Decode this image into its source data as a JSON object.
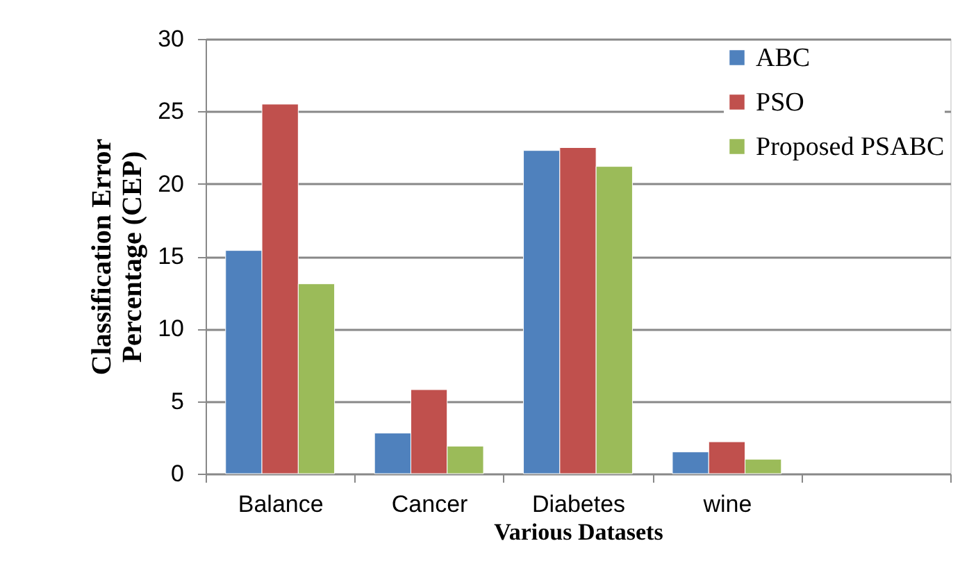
{
  "chart_data": {
    "type": "bar",
    "xlabel": "Various Datasets",
    "ylabel": "Classification Error Percentage (CEP)",
    "categories": [
      "Balance",
      "Cancer",
      "Diabetes",
      "wine",
      null
    ],
    "series": [
      {
        "name": "ABC",
        "color": "#4f81bd",
        "values": [
          15.4,
          2.8,
          22.3,
          1.5,
          null
        ]
      },
      {
        "name": "PSO",
        "color": "#c0504d",
        "values": [
          25.5,
          5.8,
          22.5,
          2.2,
          null
        ]
      },
      {
        "name": "Proposed PSABC",
        "color": "#9bbb59",
        "values": [
          13.1,
          1.9,
          21.2,
          1.0,
          null
        ]
      }
    ],
    "ylim": [
      0,
      30
    ],
    "yticks": [
      0,
      5,
      10,
      15,
      20,
      25,
      30
    ],
    "grid": "y",
    "legend": "top right"
  }
}
